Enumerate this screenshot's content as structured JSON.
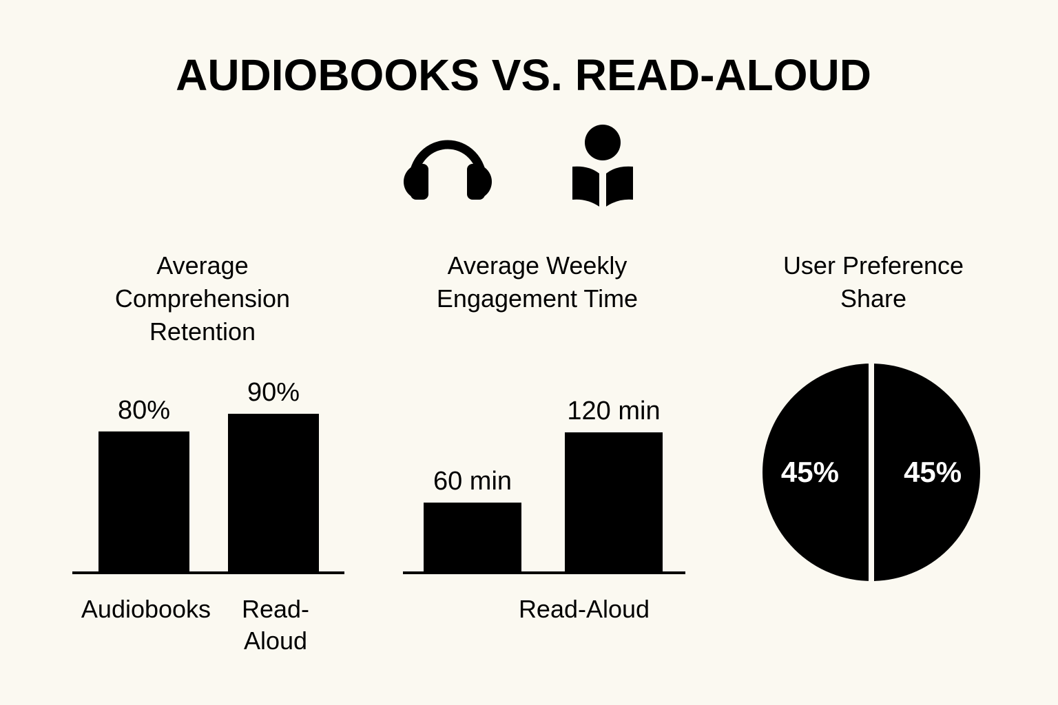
{
  "title": "AUDIOBOOKS VS. READ-ALOUD",
  "chart_data": [
    {
      "type": "bar",
      "title": "Average Comprehension Retention",
      "categories": [
        "Audiobooks",
        "Read-Aloud"
      ],
      "values": [
        80,
        90
      ],
      "value_labels": [
        "80%",
        "90%"
      ],
      "color": "#000000"
    },
    {
      "type": "bar",
      "title": "Average Weekly Engagement Time",
      "categories": [
        null,
        "Read-Aloud"
      ],
      "values": [
        60,
        120
      ],
      "value_labels": [
        "60 min",
        "120 min"
      ],
      "color": "#000000"
    },
    {
      "type": "pie",
      "title": "User Preference Share",
      "values": [
        45,
        45
      ],
      "value_labels": [
        "45%",
        "45%"
      ],
      "color": "#000000"
    }
  ]
}
